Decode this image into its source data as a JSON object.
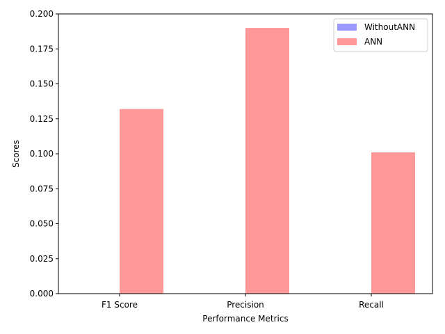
{
  "chart_data": {
    "type": "bar",
    "title": "",
    "xlabel": "Performance Metrics",
    "ylabel": "Scores",
    "categories": [
      "F1 Score",
      "Precision",
      "Recall"
    ],
    "ylim": [
      0,
      0.2
    ],
    "yticks": [
      "0.000",
      "0.025",
      "0.050",
      "0.075",
      "0.100",
      "0.125",
      "0.150",
      "0.175",
      "0.200"
    ],
    "grid": false,
    "legend_position": "top-right",
    "series": [
      {
        "name": "WithoutANN",
        "color": "#9999ff",
        "values": [
          0,
          0,
          0
        ]
      },
      {
        "name": "ANN",
        "color": "#ff9999",
        "values": [
          0.132,
          0.19,
          0.101
        ]
      }
    ]
  }
}
